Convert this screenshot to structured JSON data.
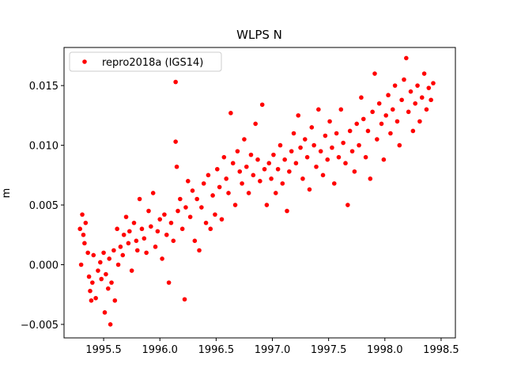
{
  "chart_data": {
    "type": "scatter",
    "title": "WLPS N",
    "y_label": "m",
    "xlim": [
      1995.148,
      1998.627
    ],
    "ylim": [
      -0.00613,
      0.01819
    ],
    "xticks": [
      1995.5,
      {
        "value": 1996.0,
        "label": "1996.0"
      },
      1996.5,
      {
        "value": 1997.0,
        "label": "1997.0"
      },
      1997.5,
      {
        "value": 1998.0,
        "label": "1998.0"
      },
      1998.5
    ],
    "yticks": [
      {
        "value": -0.005,
        "label": "−0.005"
      },
      {
        "value": 0,
        "label": "0.000"
      },
      0.005,
      {
        "value": 0.01,
        "label": "0.010"
      },
      0.015
    ],
    "grid": false,
    "legend": "upper left",
    "series": [
      {
        "name": "repro2018a (IGS14)",
        "color": "#ff0000",
        "x": [
          1995.29,
          1995.3,
          1995.31,
          1995.32,
          1995.33,
          1995.34,
          1995.36,
          1995.37,
          1995.38,
          1995.39,
          1995.4,
          1995.41,
          1995.43,
          1995.45,
          1995.47,
          1995.48,
          1995.5,
          1995.51,
          1995.52,
          1995.54,
          1995.55,
          1995.56,
          1995.57,
          1995.59,
          1995.6,
          1995.62,
          1995.63,
          1995.65,
          1995.67,
          1995.68,
          1995.7,
          1995.72,
          1995.73,
          1995.75,
          1995.77,
          1995.79,
          1995.8,
          1995.82,
          1995.84,
          1995.86,
          1995.88,
          1995.9,
          1995.92,
          1995.94,
          1995.96,
          1995.98,
          1996.0,
          1996.02,
          1996.04,
          1996.06,
          1996.08,
          1996.1,
          1996.12,
          1996.14,
          1996.14,
          1996.15,
          1996.16,
          1996.18,
          1996.2,
          1996.22,
          1996.23,
          1996.25,
          1996.27,
          1996.29,
          1996.31,
          1996.33,
          1996.35,
          1996.37,
          1996.39,
          1996.41,
          1996.43,
          1996.45,
          1996.47,
          1996.49,
          1996.51,
          1996.53,
          1996.55,
          1996.57,
          1996.59,
          1996.61,
          1996.63,
          1996.65,
          1996.67,
          1996.69,
          1996.71,
          1996.73,
          1996.75,
          1996.77,
          1996.79,
          1996.81,
          1996.83,
          1996.85,
          1996.87,
          1996.89,
          1996.91,
          1996.93,
          1996.95,
          1996.97,
          1996.99,
          1997.01,
          1997.03,
          1997.05,
          1997.07,
          1997.09,
          1997.11,
          1997.13,
          1997.15,
          1997.17,
          1997.19,
          1997.21,
          1997.23,
          1997.25,
          1997.27,
          1997.29,
          1997.31,
          1997.33,
          1997.35,
          1997.37,
          1997.39,
          1997.41,
          1997.43,
          1997.45,
          1997.47,
          1997.49,
          1997.51,
          1997.53,
          1997.55,
          1997.57,
          1997.59,
          1997.61,
          1997.63,
          1997.65,
          1997.67,
          1997.69,
          1997.71,
          1997.73,
          1997.75,
          1997.77,
          1997.79,
          1997.81,
          1997.83,
          1997.85,
          1997.87,
          1997.89,
          1997.91,
          1997.93,
          1997.95,
          1997.97,
          1997.99,
          1998.01,
          1998.03,
          1998.05,
          1998.07,
          1998.09,
          1998.11,
          1998.13,
          1998.15,
          1998.17,
          1998.19,
          1998.21,
          1998.23,
          1998.25,
          1998.27,
          1998.29,
          1998.31,
          1998.33,
          1998.35,
          1998.37,
          1998.39,
          1998.41,
          1998.43
        ],
        "values": [
          0.003,
          0.0,
          0.0042,
          0.0025,
          0.0018,
          0.0035,
          0.001,
          -0.001,
          -0.0022,
          -0.003,
          -0.0015,
          0.0008,
          -0.0028,
          -0.0005,
          0.0002,
          -0.0012,
          0.001,
          -0.004,
          -0.0008,
          -0.002,
          0.0005,
          -0.005,
          -0.0015,
          0.0012,
          -0.003,
          0.003,
          0.0,
          0.0015,
          0.0008,
          0.0025,
          0.004,
          0.0018,
          0.0028,
          -0.0005,
          0.0035,
          0.002,
          0.0012,
          0.0055,
          0.003,
          0.0022,
          0.001,
          0.0045,
          0.0032,
          0.006,
          0.0015,
          0.0028,
          0.0038,
          0.0005,
          0.0042,
          0.0025,
          -0.0015,
          0.0035,
          0.002,
          0.0153,
          0.0103,
          0.0082,
          0.0045,
          0.0055,
          0.003,
          -0.0029,
          0.0048,
          0.007,
          0.004,
          0.0062,
          0.002,
          0.0055,
          0.0012,
          0.0048,
          0.0068,
          0.0035,
          0.0075,
          0.003,
          0.0058,
          0.0042,
          0.008,
          0.0065,
          0.0038,
          0.009,
          0.0072,
          0.006,
          0.0127,
          0.0085,
          0.005,
          0.0095,
          0.0078,
          0.0068,
          0.0105,
          0.0082,
          0.006,
          0.0092,
          0.0075,
          0.0118,
          0.0088,
          0.007,
          0.0134,
          0.008,
          0.005,
          0.0085,
          0.0072,
          0.0092,
          0.006,
          0.008,
          0.01,
          0.0068,
          0.0088,
          0.0045,
          0.0078,
          0.0095,
          0.011,
          0.0085,
          0.0125,
          0.0098,
          0.0072,
          0.0105,
          0.009,
          0.0063,
          0.0115,
          0.01,
          0.0082,
          0.013,
          0.0095,
          0.0075,
          0.0108,
          0.0088,
          0.012,
          0.0098,
          0.0068,
          0.011,
          0.009,
          0.013,
          0.0102,
          0.0085,
          0.005,
          0.0112,
          0.0095,
          0.0078,
          0.0118,
          0.01,
          0.014,
          0.0122,
          0.009,
          0.0112,
          0.0072,
          0.0128,
          0.016,
          0.0105,
          0.0135,
          0.0118,
          0.0088,
          0.0125,
          0.0142,
          0.011,
          0.013,
          0.015,
          0.012,
          0.01,
          0.0138,
          0.0155,
          0.0173,
          0.0128,
          0.0145,
          0.0112,
          0.0135,
          0.015,
          0.012,
          0.014,
          0.016,
          0.013,
          0.0148,
          0.0138,
          0.0152
        ]
      }
    ]
  }
}
